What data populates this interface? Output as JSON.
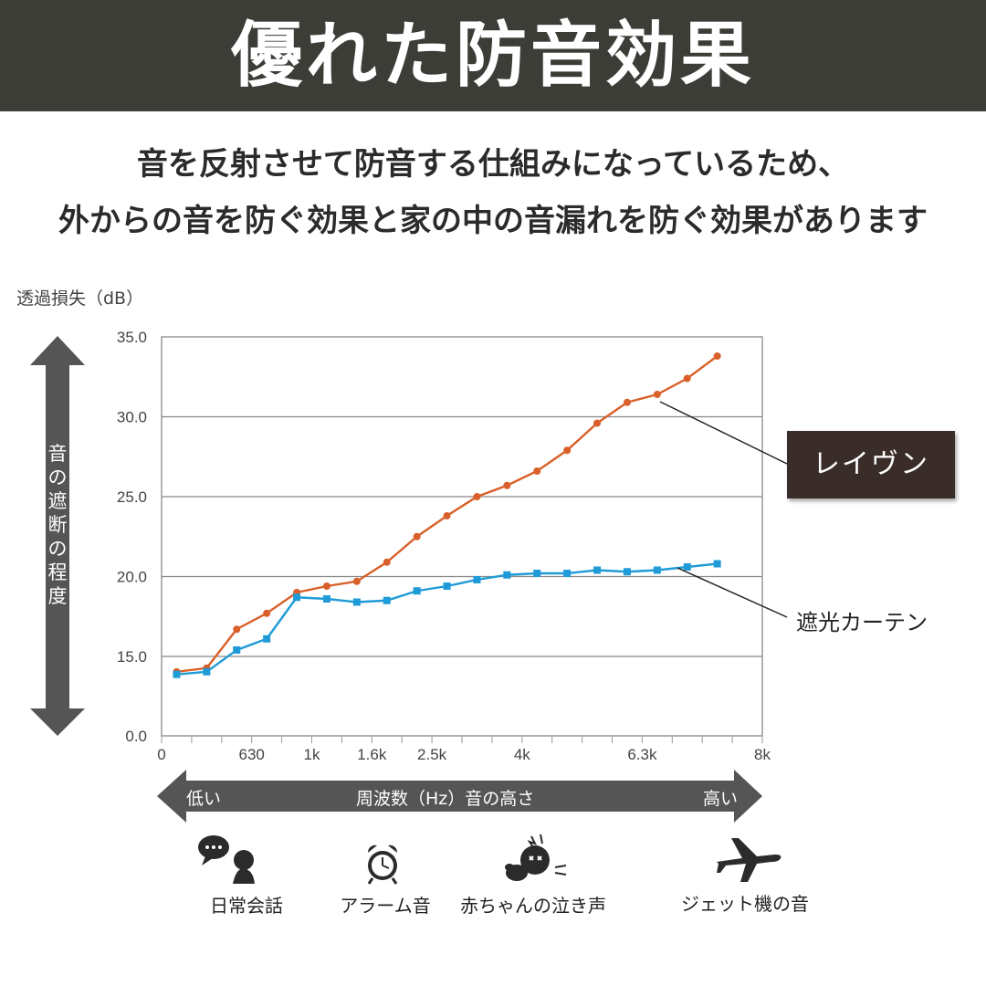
{
  "header": {
    "title": "優れた防音効果",
    "subtitle_line1": "音を反射させて防音する仕組みになっているため、",
    "subtitle_line2": "外からの音を防ぐ効果と家の中の音漏れを防ぐ効果があります"
  },
  "colors": {
    "banner": "#3d3d38",
    "raven": "#d9602a",
    "curtain": "#1f9bd7",
    "arrow": "#555555",
    "callout": "#3a2c28"
  },
  "chart_data": {
    "type": "line",
    "ylabel": "透過損失（dB）",
    "y_axis_vertical_label": "音の遮断の程度",
    "y_ticks": [
      "35.0",
      "30.0",
      "25.0",
      "20.0",
      "15.0",
      "0.0"
    ],
    "x_tick_labels": [
      {
        "index": 0,
        "label": "0"
      },
      {
        "index": 3,
        "label": "630"
      },
      {
        "index": 5,
        "label": "1k"
      },
      {
        "index": 7,
        "label": "1.6k"
      },
      {
        "index": 9,
        "label": "2.5k"
      },
      {
        "index": 12,
        "label": "4k"
      },
      {
        "index": 16,
        "label": "6.3k"
      },
      {
        "index": 20,
        "label": "8k"
      }
    ],
    "x_axis_label": "周波数（Hz）音の高さ",
    "x_low_label": "低い",
    "x_high_label": "高い",
    "series": [
      {
        "name": "レイヴン",
        "marker": "circle",
        "values": [
          12.1,
          12.8,
          16.7,
          17.7,
          19.0,
          19.4,
          19.7,
          20.9,
          22.5,
          23.8,
          25.0,
          25.7,
          26.6,
          27.9,
          29.6,
          30.9,
          31.4,
          32.4,
          33.8
        ]
      },
      {
        "name": "遮光カーテン",
        "marker": "square",
        "values": [
          11.6,
          12.1,
          15.4,
          16.1,
          18.7,
          18.6,
          18.4,
          18.5,
          19.1,
          19.4,
          19.8,
          20.1,
          20.2,
          20.2,
          20.4,
          20.3,
          20.4,
          20.6,
          20.8
        ]
      }
    ]
  },
  "icons": [
    {
      "name": "conversation-icon",
      "label": "日常会話"
    },
    {
      "name": "alarm-clock-icon",
      "label": "アラーム音"
    },
    {
      "name": "crying-baby-icon",
      "label": "赤ちゃんの泣き声"
    },
    {
      "name": "airplane-icon",
      "label": "ジェット機の音"
    }
  ]
}
